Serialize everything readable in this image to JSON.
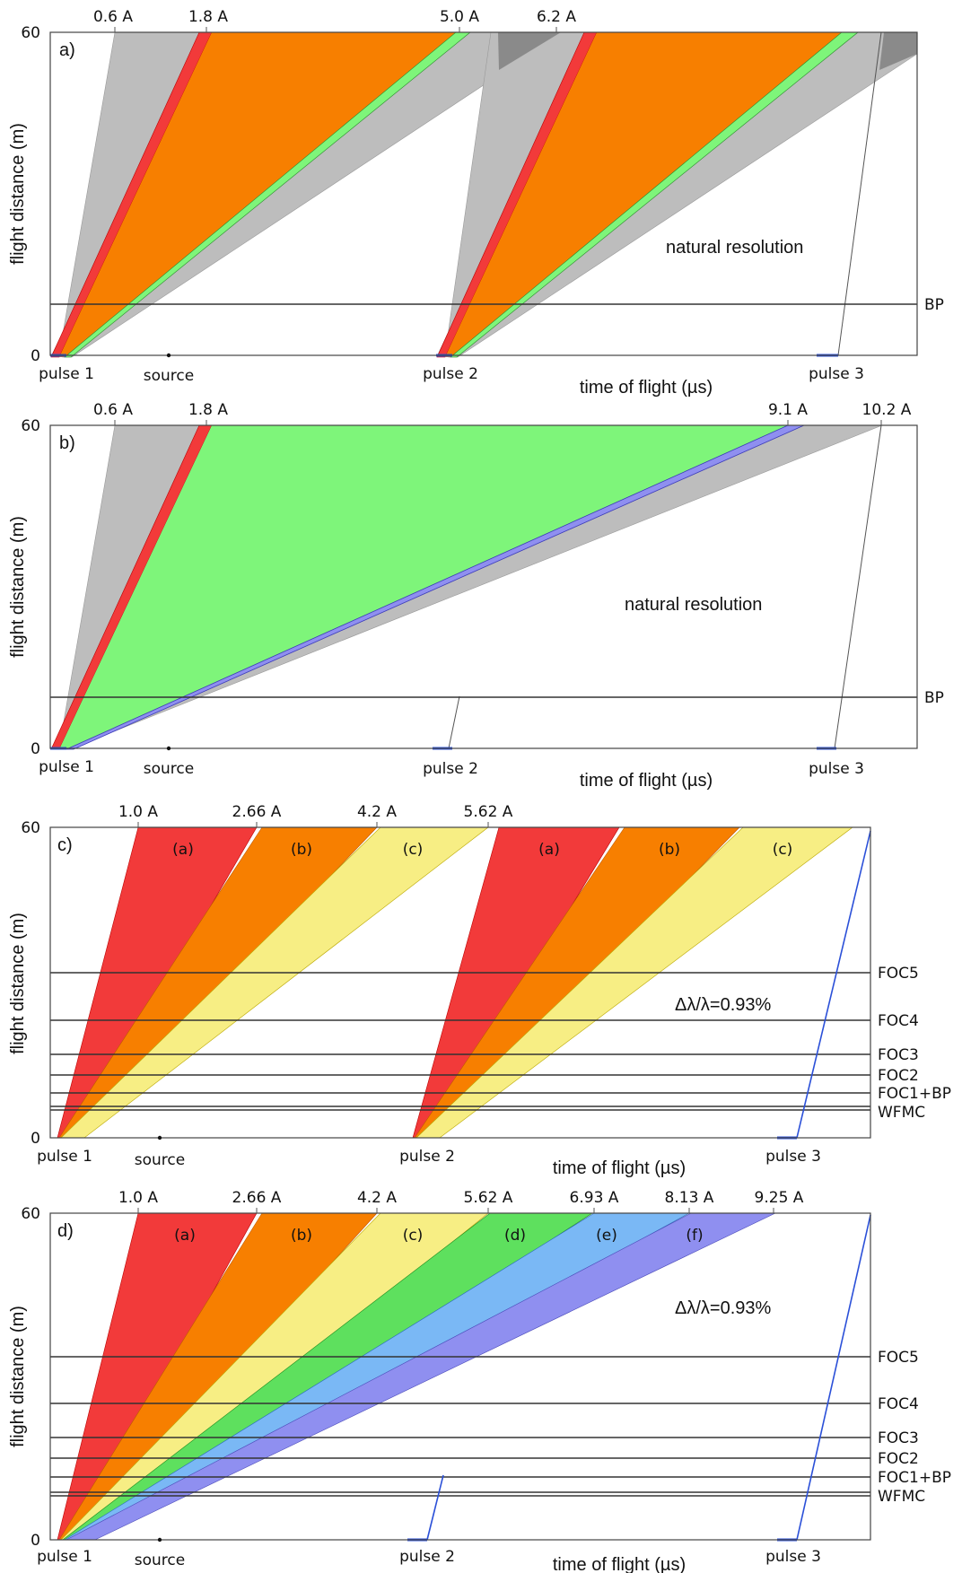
{
  "common": {
    "ylabel": "flight distance (m)",
    "xlabel": "time of flight (µs)",
    "ytick_top": "60",
    "ytick_bottom": "0"
  },
  "panels": [
    {
      "id": "a",
      "tag": "a)",
      "annotation": "natural resolution",
      "wavelength_labels": [
        "0.6 A",
        "1.8 A",
        "5.0 A",
        "6.2 A"
      ],
      "pulse_labels": [
        "pulse 1",
        "pulse 2",
        "pulse 3"
      ],
      "source_label": "source",
      "hlines": [
        "BP"
      ]
    },
    {
      "id": "b",
      "tag": "b)",
      "annotation": "natural resolution",
      "wavelength_labels": [
        "0.6 A",
        "1.8 A",
        "9.1 A",
        "10.2 A"
      ],
      "pulse_labels": [
        "pulse 1",
        "pulse 2",
        "pulse 3"
      ],
      "source_label": "source",
      "hlines": [
        "BP"
      ]
    },
    {
      "id": "c",
      "tag": "c)",
      "annotation": "Δλ/λ=0.93%",
      "wavelength_labels": [
        "1.0 A",
        "2.66 A",
        "4.2 A",
        "5.62 A"
      ],
      "band_labels": [
        "(a)",
        "(b)",
        "(c)",
        "(a)",
        "(b)",
        "(c)"
      ],
      "pulse_labels": [
        "pulse 1",
        "pulse 2",
        "pulse 3"
      ],
      "source_label": "source",
      "hlines": [
        "FOC5",
        "FOC4",
        "FOC3",
        "FOC2",
        "FOC1+BP",
        "WFMC"
      ]
    },
    {
      "id": "d",
      "tag": "d)",
      "annotation": "Δλ/λ=0.93%",
      "wavelength_labels": [
        "1.0 A",
        "2.66 A",
        "4.2 A",
        "5.62 A",
        "6.93 A",
        "8.13 A",
        "9.25 A"
      ],
      "band_labels": [
        "(a)",
        "(b)",
        "(c)",
        "(d)",
        "(e)",
        "(f)"
      ],
      "pulse_labels": [
        "pulse 1",
        "pulse 2",
        "pulse 3"
      ],
      "source_label": "source",
      "hlines": [
        "FOC5",
        "FOC4",
        "FOC3",
        "FOC2",
        "FOC1+BP",
        "WFMC"
      ]
    }
  ],
  "colors": {
    "red": "#f23a3a",
    "orange": "#f77f00",
    "green": "#7ef57a",
    "yellow": "#f7ee84",
    "lightgreen": "#5ee05e",
    "lightblue": "#7ab8f5",
    "violet": "#8f8ff0",
    "gray": "#bdbdbd",
    "darkgray": "#8a8a8a",
    "blue": "#2b50d8"
  }
}
